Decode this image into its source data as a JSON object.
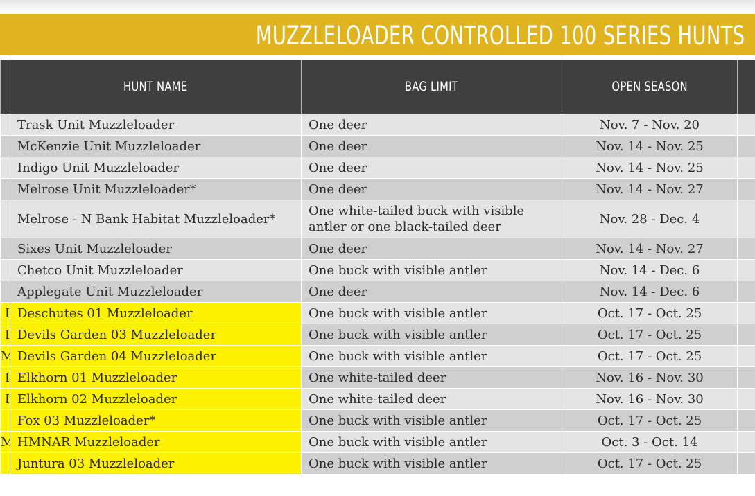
{
  "title": "MUZZLELOADER CONTROLLED 100 SERIES HUNTS",
  "columns": {
    "hunt_name": "HUNT NAME",
    "bag_limit": "BAG LIMIT",
    "open_season": "OPEN SEASON"
  },
  "colors": {
    "banner": "#e0b41f",
    "header": "#3f3f3f",
    "row_light": "#e4e4e4",
    "row_dark": "#cfcfcf",
    "highlight": "#fff200"
  },
  "rows": [
    {
      "lead": "",
      "name": "Trask Unit Muzzleloader",
      "bag": "One deer",
      "season": "Nov. 7 - Nov. 20",
      "highlight": false
    },
    {
      "lead": "",
      "name": "McKenzie Unit Muzzleloader",
      "bag": "One deer",
      "season": "Nov. 14 - Nov. 25",
      "highlight": false
    },
    {
      "lead": "",
      "name": "Indigo Unit Muzzleloader",
      "bag": "One deer",
      "season": "Nov. 14 - Nov. 25",
      "highlight": false
    },
    {
      "lead": "",
      "name": "Melrose Unit Muzzleloader*",
      "bag": "One deer",
      "season": "Nov. 14 - Nov. 27",
      "highlight": false
    },
    {
      "lead": "",
      "name": "Melrose - N Bank Habitat Muzzleloader*",
      "bag": "One white-tailed buck with visible antler or one black-tailed deer",
      "season": "Nov. 28 - Dec. 4",
      "highlight": false
    },
    {
      "lead": "",
      "name": "Sixes Unit Muzzleloader",
      "bag": "One deer",
      "season": "Nov. 14 - Nov. 27",
      "highlight": false
    },
    {
      "lead": "",
      "name": "Chetco Unit Muzzleloader",
      "bag": "One buck with visible antler",
      "season": "Nov. 14 - Dec. 6",
      "highlight": false
    },
    {
      "lead": "",
      "name": "Applegate Unit Muzzleloader",
      "bag": "One deer",
      "season": "Nov. 14 - Dec. 6",
      "highlight": false
    },
    {
      "lead": "I",
      "name": "Deschutes 01 Muzzleloader",
      "bag": "One buck with visible antler",
      "season": "Oct. 17 - Oct. 25",
      "highlight": true
    },
    {
      "lead": "I",
      "name": "Devils Garden 03 Muzzleloader",
      "bag": "One buck with visible antler",
      "season": "Oct. 17 - Oct. 25",
      "highlight": true
    },
    {
      "lead": "M",
      "name": "Devils Garden 04 Muzzleloader",
      "bag": "One buck with visible antler",
      "season": "Oct. 17 - Oct. 25",
      "highlight": true
    },
    {
      "lead": "I",
      "name": "Elkhorn 01 Muzzleloader",
      "bag": "One white-tailed deer",
      "season": "Nov. 16 - Nov. 30",
      "highlight": true
    },
    {
      "lead": "I",
      "name": "Elkhorn 02 Muzzleloader",
      "bag": "One white-tailed deer",
      "season": "Nov. 16 - Nov. 30",
      "highlight": true
    },
    {
      "lead": "",
      "name": "Fox 03 Muzzleloader*",
      "bag": "One buck with visible antler",
      "season": "Oct. 17 - Oct. 25",
      "highlight": true
    },
    {
      "lead": "M",
      "name": "HMNAR Muzzleloader",
      "bag": "One buck with visible antler",
      "season": "Oct. 3 - Oct. 14",
      "highlight": true
    },
    {
      "lead": "",
      "name": "Juntura 03 Muzzleloader",
      "bag": "One buck with visible antler",
      "season": "Oct. 17 - Oct. 25",
      "highlight": true
    }
  ]
}
